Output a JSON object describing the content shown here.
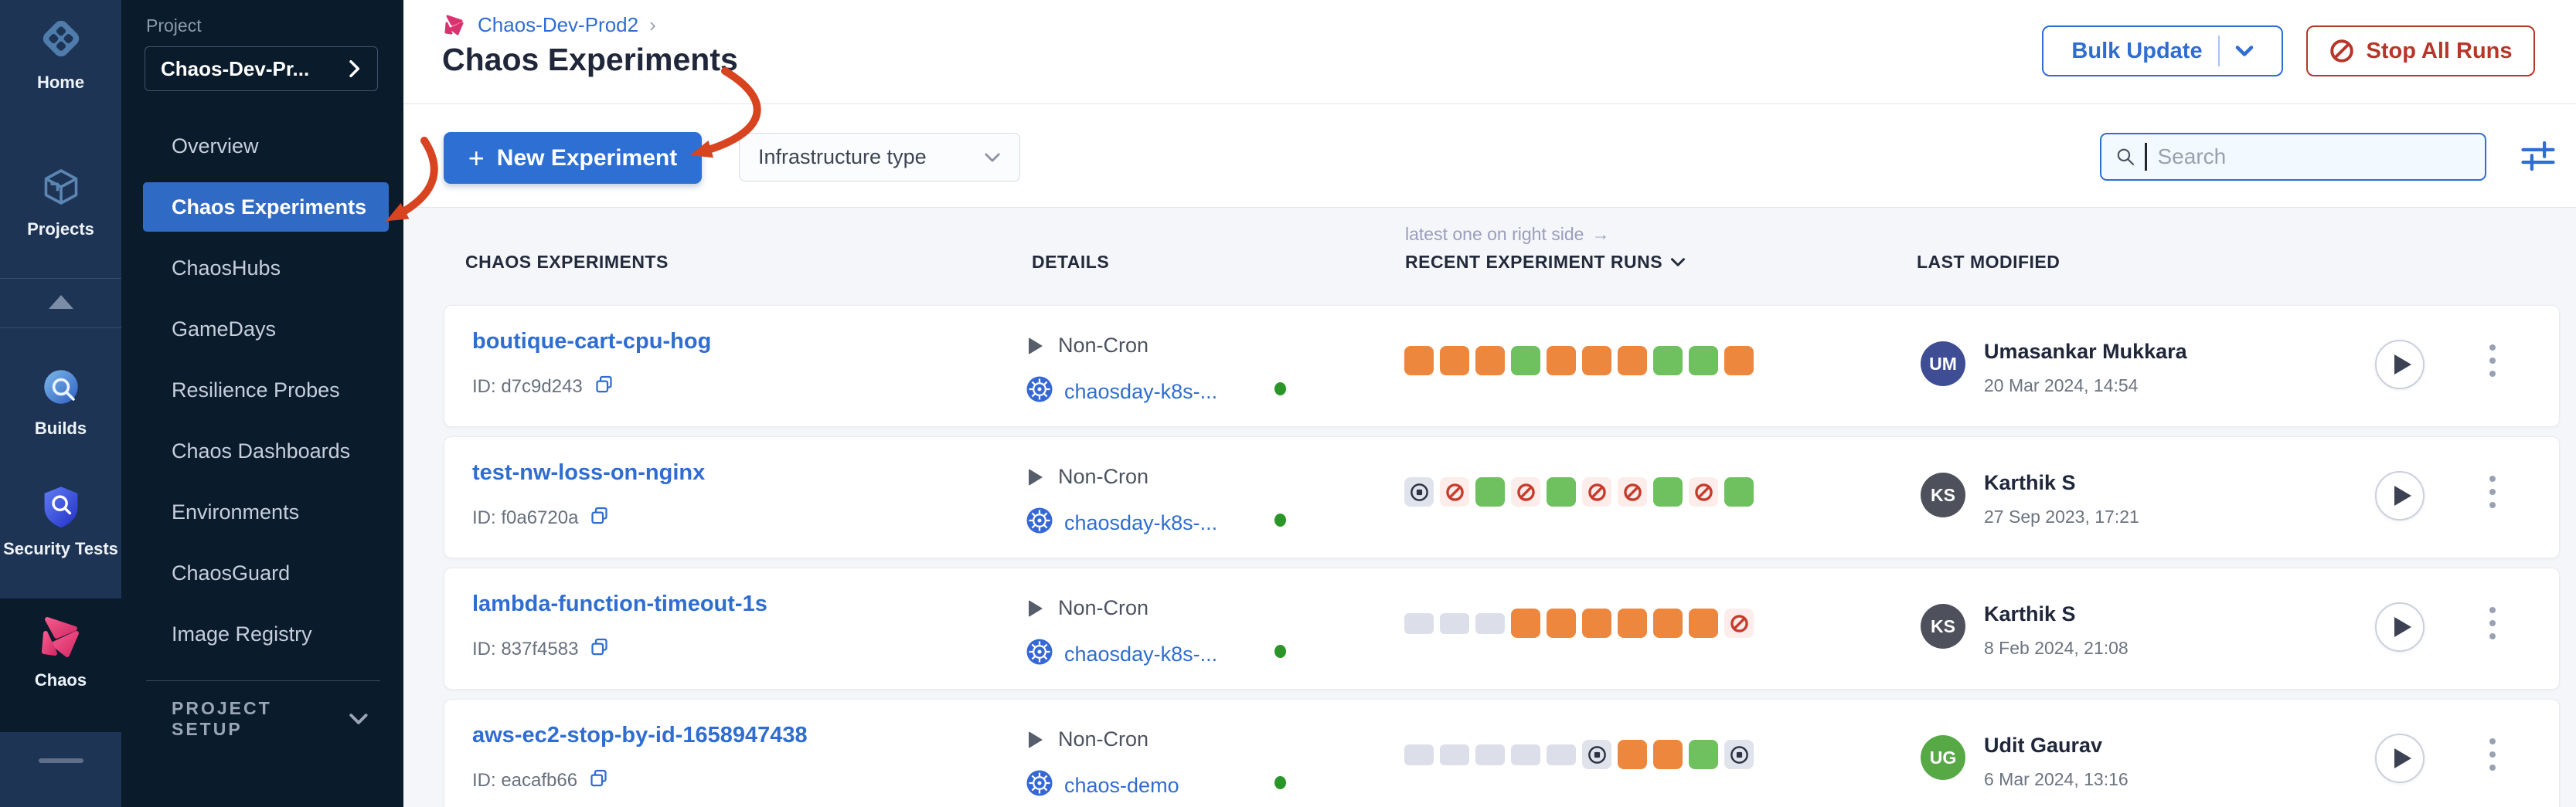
{
  "colors": {
    "accent_blue": "#2f6dd0",
    "nav_selected_blue": "#2f6bc4",
    "annotation_red": "#d8441f",
    "danger_red": "#b7362a",
    "run_orange": "#ed873d",
    "run_green": "#6fc05e",
    "run_failed_bg": "#fcecea",
    "run_failed_icon": "#c63c2c",
    "run_stopped_bg": "#e0e2ec",
    "run_stopped_icon": "#2e3344",
    "run_empty": "#dcdfe9",
    "status_dot_green": "#2a9628"
  },
  "icons": {
    "plus": "+",
    "breadcrumb_sep": "›",
    "arrow_right": "→"
  },
  "rail": {
    "items": [
      {
        "label": "Home",
        "icon": "home"
      },
      {
        "label": "Projects",
        "icon": "projects"
      },
      {
        "label": "Builds",
        "icon": "builds"
      },
      {
        "label": "Security Tests",
        "icon": "security-tests"
      },
      {
        "label": "Chaos",
        "icon": "chaos",
        "selected": true
      }
    ]
  },
  "sidebar": {
    "project_label": "Project",
    "project_name": "Chaos-Dev-Pr...",
    "items": [
      "Overview",
      "Chaos Experiments",
      "ChaosHubs",
      "GameDays",
      "Resilience Probes",
      "Chaos Dashboards",
      "Environments",
      "ChaosGuard",
      "Image Registry"
    ],
    "selected_item": "Chaos Experiments",
    "project_setup_label": "PROJECT SETUP"
  },
  "header": {
    "breadcrumb_project": "Chaos-Dev-Prod2",
    "title": "Chaos Experiments",
    "bulk_update_label": "Bulk Update",
    "stop_all_label": "Stop All Runs"
  },
  "toolbar": {
    "new_experiment_label": "New Experiment",
    "infrastructure_type_label": "Infrastructure type",
    "search_placeholder": "Search"
  },
  "table": {
    "columns": [
      "CHAOS EXPERIMENTS",
      "DETAILS",
      "RECENT EXPERIMENT RUNS",
      "LAST MODIFIED"
    ],
    "runs_note": "latest one on right side",
    "id_prefix": "ID:",
    "rows": [
      {
        "name": "boutique-cart-cpu-hog",
        "id": "d7c9d243",
        "schedule": "Non-Cron",
        "infra": "chaosday-k8s-...",
        "runs": [
          "orange",
          "orange",
          "orange",
          "green",
          "orange",
          "orange",
          "orange",
          "green",
          "green",
          "orange"
        ],
        "user": {
          "name": "Umasankar Mukkara",
          "initials": "UM",
          "avatar_color": "#3f4d95"
        },
        "modified": "20 Mar 2024, 14:54"
      },
      {
        "name": "test-nw-loss-on-nginx",
        "id": "f0a6720a",
        "schedule": "Non-Cron",
        "infra": "chaosday-k8s-...",
        "runs": [
          "stopped",
          "failed",
          "green",
          "failed",
          "green",
          "failed",
          "failed",
          "green",
          "failed",
          "green"
        ],
        "user": {
          "name": "Karthik S",
          "initials": "KS",
          "avatar_color": "#4e505c"
        },
        "modified": "27 Sep 2023, 17:21"
      },
      {
        "name": "lambda-function-timeout-1s",
        "id": "837f4583",
        "schedule": "Non-Cron",
        "infra": "chaosday-k8s-...",
        "runs": [
          "empty",
          "empty",
          "empty",
          "orange",
          "orange",
          "orange",
          "orange",
          "orange",
          "orange",
          "failed"
        ],
        "user": {
          "name": "Karthik S",
          "initials": "KS",
          "avatar_color": "#4e505c"
        },
        "modified": "8 Feb 2024, 21:08"
      },
      {
        "name": "aws-ec2-stop-by-id-1658947438",
        "id": "eacafb66",
        "schedule": "Non-Cron",
        "infra": "chaos-demo",
        "runs": [
          "empty",
          "empty",
          "empty",
          "empty",
          "empty",
          "stopped",
          "orange",
          "orange",
          "green",
          "stopped"
        ],
        "user": {
          "name": "Udit Gaurav",
          "initials": "UG",
          "avatar_color": "#57a946"
        },
        "modified": "6 Mar 2024, 13:16"
      }
    ]
  }
}
